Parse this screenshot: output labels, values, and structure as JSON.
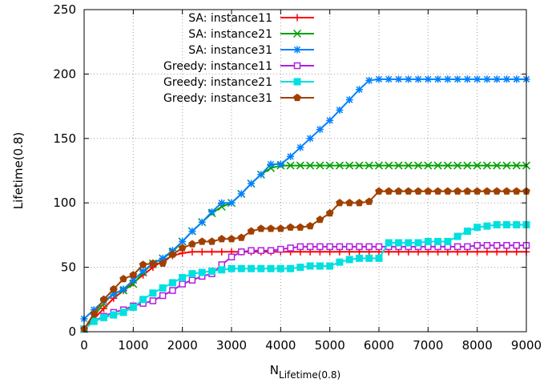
{
  "chart_data": {
    "type": "line",
    "title": "",
    "xlabel_main": "N",
    "xlabel_sub": "Lifetime(0.8)",
    "ylabel": "Lifetime(0.8)",
    "xlim": [
      0,
      9000
    ],
    "ylim": [
      0,
      250
    ],
    "x_ticks": [
      0,
      1000,
      2000,
      3000,
      4000,
      5000,
      6000,
      7000,
      8000,
      9000
    ],
    "y_ticks": [
      0,
      50,
      100,
      150,
      200,
      250
    ],
    "grid": true,
    "legend_position": "top-right",
    "series": [
      {
        "name": "SA: instance11",
        "color": "#ff0000",
        "marker": "plus",
        "points": [
          [
            0,
            2
          ],
          [
            200,
            10
          ],
          [
            400,
            18
          ],
          [
            600,
            26
          ],
          [
            800,
            32
          ],
          [
            1000,
            38
          ],
          [
            1200,
            44
          ],
          [
            1400,
            50
          ],
          [
            1600,
            55
          ],
          [
            1800,
            59
          ],
          [
            2000,
            61
          ],
          [
            2200,
            62
          ],
          [
            2400,
            62
          ],
          [
            2600,
            62
          ],
          [
            2800,
            62
          ],
          [
            3000,
            62
          ],
          [
            3200,
            62
          ],
          [
            3400,
            62
          ],
          [
            3600,
            62
          ],
          [
            3800,
            62
          ],
          [
            4000,
            62
          ],
          [
            4200,
            62
          ],
          [
            4400,
            62
          ],
          [
            4600,
            62
          ],
          [
            4800,
            62
          ],
          [
            5000,
            62
          ],
          [
            5200,
            62
          ],
          [
            5400,
            62
          ],
          [
            5600,
            62
          ],
          [
            5800,
            62
          ],
          [
            6000,
            62
          ],
          [
            6200,
            62
          ],
          [
            6400,
            62
          ],
          [
            6600,
            62
          ],
          [
            6800,
            62
          ],
          [
            7000,
            62
          ],
          [
            7200,
            62
          ],
          [
            7400,
            62
          ],
          [
            7600,
            62
          ],
          [
            7800,
            62
          ],
          [
            8000,
            62
          ],
          [
            8200,
            62
          ],
          [
            8400,
            62
          ],
          [
            8600,
            62
          ],
          [
            8800,
            62
          ],
          [
            9000,
            62
          ]
        ]
      },
      {
        "name": "SA: instance21",
        "color": "#00a000",
        "marker": "cross",
        "points": [
          [
            0,
            2
          ],
          [
            200,
            12
          ],
          [
            400,
            22
          ],
          [
            600,
            30
          ],
          [
            800,
            32
          ],
          [
            1000,
            37
          ],
          [
            1200,
            46
          ],
          [
            1400,
            53
          ],
          [
            1600,
            57
          ],
          [
            1800,
            62
          ],
          [
            2000,
            70
          ],
          [
            2200,
            78
          ],
          [
            2400,
            85
          ],
          [
            2600,
            92
          ],
          [
            2800,
            97
          ],
          [
            3000,
            100
          ],
          [
            3200,
            107
          ],
          [
            3400,
            115
          ],
          [
            3600,
            122
          ],
          [
            3800,
            127
          ],
          [
            4000,
            129
          ],
          [
            4200,
            129
          ],
          [
            4400,
            129
          ],
          [
            4600,
            129
          ],
          [
            4800,
            129
          ],
          [
            5000,
            129
          ],
          [
            5200,
            129
          ],
          [
            5400,
            129
          ],
          [
            5600,
            129
          ],
          [
            5800,
            129
          ],
          [
            6000,
            129
          ],
          [
            6200,
            129
          ],
          [
            6400,
            129
          ],
          [
            6600,
            129
          ],
          [
            6800,
            129
          ],
          [
            7000,
            129
          ],
          [
            7200,
            129
          ],
          [
            7400,
            129
          ],
          [
            7600,
            129
          ],
          [
            7800,
            129
          ],
          [
            8000,
            129
          ],
          [
            8200,
            129
          ],
          [
            8400,
            129
          ],
          [
            8600,
            129
          ],
          [
            8800,
            129
          ],
          [
            9000,
            129
          ]
        ]
      },
      {
        "name": "SA: instance31",
        "color": "#0080ff",
        "marker": "star",
        "points": [
          [
            0,
            10
          ],
          [
            200,
            17
          ],
          [
            400,
            24
          ],
          [
            600,
            29
          ],
          [
            800,
            33
          ],
          [
            1000,
            40
          ],
          [
            1200,
            47
          ],
          [
            1400,
            53
          ],
          [
            1600,
            57
          ],
          [
            1800,
            63
          ],
          [
            2000,
            70
          ],
          [
            2200,
            78
          ],
          [
            2400,
            85
          ],
          [
            2600,
            93
          ],
          [
            2800,
            100
          ],
          [
            3000,
            100
          ],
          [
            3200,
            107
          ],
          [
            3400,
            115
          ],
          [
            3600,
            122
          ],
          [
            3800,
            130
          ],
          [
            4000,
            130
          ],
          [
            4200,
            136
          ],
          [
            4400,
            143
          ],
          [
            4600,
            150
          ],
          [
            4800,
            157
          ],
          [
            5000,
            164
          ],
          [
            5200,
            172
          ],
          [
            5400,
            180
          ],
          [
            5600,
            188
          ],
          [
            5800,
            195
          ],
          [
            6000,
            196
          ],
          [
            6200,
            196
          ],
          [
            6400,
            196
          ],
          [
            6600,
            196
          ],
          [
            6800,
            196
          ],
          [
            7000,
            196
          ],
          [
            7200,
            196
          ],
          [
            7400,
            196
          ],
          [
            7600,
            196
          ],
          [
            7800,
            196
          ],
          [
            8000,
            196
          ],
          [
            8200,
            196
          ],
          [
            8400,
            196
          ],
          [
            8600,
            196
          ],
          [
            8800,
            196
          ],
          [
            9000,
            196
          ]
        ]
      },
      {
        "name": "Greedy: instance11",
        "color": "#b020e0",
        "marker": "square-open",
        "points": [
          [
            0,
            2
          ],
          [
            200,
            8
          ],
          [
            400,
            12
          ],
          [
            600,
            15
          ],
          [
            800,
            17
          ],
          [
            1000,
            20
          ],
          [
            1200,
            22
          ],
          [
            1400,
            24
          ],
          [
            1600,
            28
          ],
          [
            1800,
            32
          ],
          [
            2000,
            37
          ],
          [
            2200,
            40
          ],
          [
            2400,
            43
          ],
          [
            2600,
            45
          ],
          [
            2800,
            52
          ],
          [
            3000,
            58
          ],
          [
            3200,
            62
          ],
          [
            3400,
            63
          ],
          [
            3600,
            63
          ],
          [
            3800,
            63
          ],
          [
            4000,
            64
          ],
          [
            4200,
            65
          ],
          [
            4400,
            66
          ],
          [
            4600,
            66
          ],
          [
            4800,
            66
          ],
          [
            5000,
            66
          ],
          [
            5200,
            66
          ],
          [
            5400,
            66
          ],
          [
            5600,
            66
          ],
          [
            5800,
            66
          ],
          [
            6000,
            66
          ],
          [
            6200,
            66
          ],
          [
            6400,
            66
          ],
          [
            6600,
            66
          ],
          [
            6800,
            66
          ],
          [
            7000,
            66
          ],
          [
            7200,
            66
          ],
          [
            7400,
            66
          ],
          [
            7600,
            66
          ],
          [
            7800,
            66
          ],
          [
            8000,
            67
          ],
          [
            8200,
            67
          ],
          [
            8400,
            67
          ],
          [
            8600,
            67
          ],
          [
            8800,
            67
          ],
          [
            9000,
            67
          ]
        ]
      },
      {
        "name": "Greedy: instance21",
        "color": "#00e0e0",
        "marker": "square-filled",
        "points": [
          [
            0,
            2
          ],
          [
            200,
            8
          ],
          [
            400,
            11
          ],
          [
            600,
            13
          ],
          [
            800,
            15
          ],
          [
            1000,
            19
          ],
          [
            1200,
            25
          ],
          [
            1400,
            30
          ],
          [
            1600,
            34
          ],
          [
            1800,
            38
          ],
          [
            2000,
            42
          ],
          [
            2200,
            45
          ],
          [
            2400,
            46
          ],
          [
            2600,
            47
          ],
          [
            2800,
            48
          ],
          [
            3000,
            49
          ],
          [
            3200,
            49
          ],
          [
            3400,
            49
          ],
          [
            3600,
            49
          ],
          [
            3800,
            49
          ],
          [
            4000,
            49
          ],
          [
            4200,
            49
          ],
          [
            4400,
            50
          ],
          [
            4600,
            51
          ],
          [
            4800,
            51
          ],
          [
            5000,
            51
          ],
          [
            5200,
            54
          ],
          [
            5400,
            56
          ],
          [
            5600,
            57
          ],
          [
            5800,
            57
          ],
          [
            6000,
            57
          ],
          [
            6200,
            69
          ],
          [
            6400,
            69
          ],
          [
            6600,
            69
          ],
          [
            6800,
            69
          ],
          [
            7000,
            70
          ],
          [
            7200,
            70
          ],
          [
            7400,
            70
          ],
          [
            7600,
            74
          ],
          [
            7800,
            78
          ],
          [
            8000,
            81
          ],
          [
            8200,
            82
          ],
          [
            8400,
            83
          ],
          [
            8600,
            83
          ],
          [
            8800,
            83
          ],
          [
            9000,
            83
          ]
        ]
      },
      {
        "name": "Greedy: instance31",
        "color": "#a04000",
        "marker": "pentagon-filled",
        "points": [
          [
            0,
            2
          ],
          [
            200,
            14
          ],
          [
            400,
            25
          ],
          [
            600,
            33
          ],
          [
            800,
            41
          ],
          [
            1000,
            44
          ],
          [
            1200,
            52
          ],
          [
            1400,
            53
          ],
          [
            1600,
            53
          ],
          [
            1800,
            60
          ],
          [
            2000,
            65
          ],
          [
            2200,
            68
          ],
          [
            2400,
            70
          ],
          [
            2600,
            70
          ],
          [
            2800,
            72
          ],
          [
            3000,
            72
          ],
          [
            3200,
            73
          ],
          [
            3400,
            78
          ],
          [
            3600,
            80
          ],
          [
            3800,
            80
          ],
          [
            4000,
            80
          ],
          [
            4200,
            81
          ],
          [
            4400,
            81
          ],
          [
            4600,
            82
          ],
          [
            4800,
            87
          ],
          [
            5000,
            92
          ],
          [
            5200,
            100
          ],
          [
            5400,
            100
          ],
          [
            5600,
            100
          ],
          [
            5800,
            101
          ],
          [
            6000,
            109
          ],
          [
            6200,
            109
          ],
          [
            6400,
            109
          ],
          [
            6600,
            109
          ],
          [
            6800,
            109
          ],
          [
            7000,
            109
          ],
          [
            7200,
            109
          ],
          [
            7400,
            109
          ],
          [
            7600,
            109
          ],
          [
            7800,
            109
          ],
          [
            8000,
            109
          ],
          [
            8200,
            109
          ],
          [
            8400,
            109
          ],
          [
            8600,
            109
          ],
          [
            8800,
            109
          ],
          [
            9000,
            109
          ]
        ]
      }
    ]
  }
}
